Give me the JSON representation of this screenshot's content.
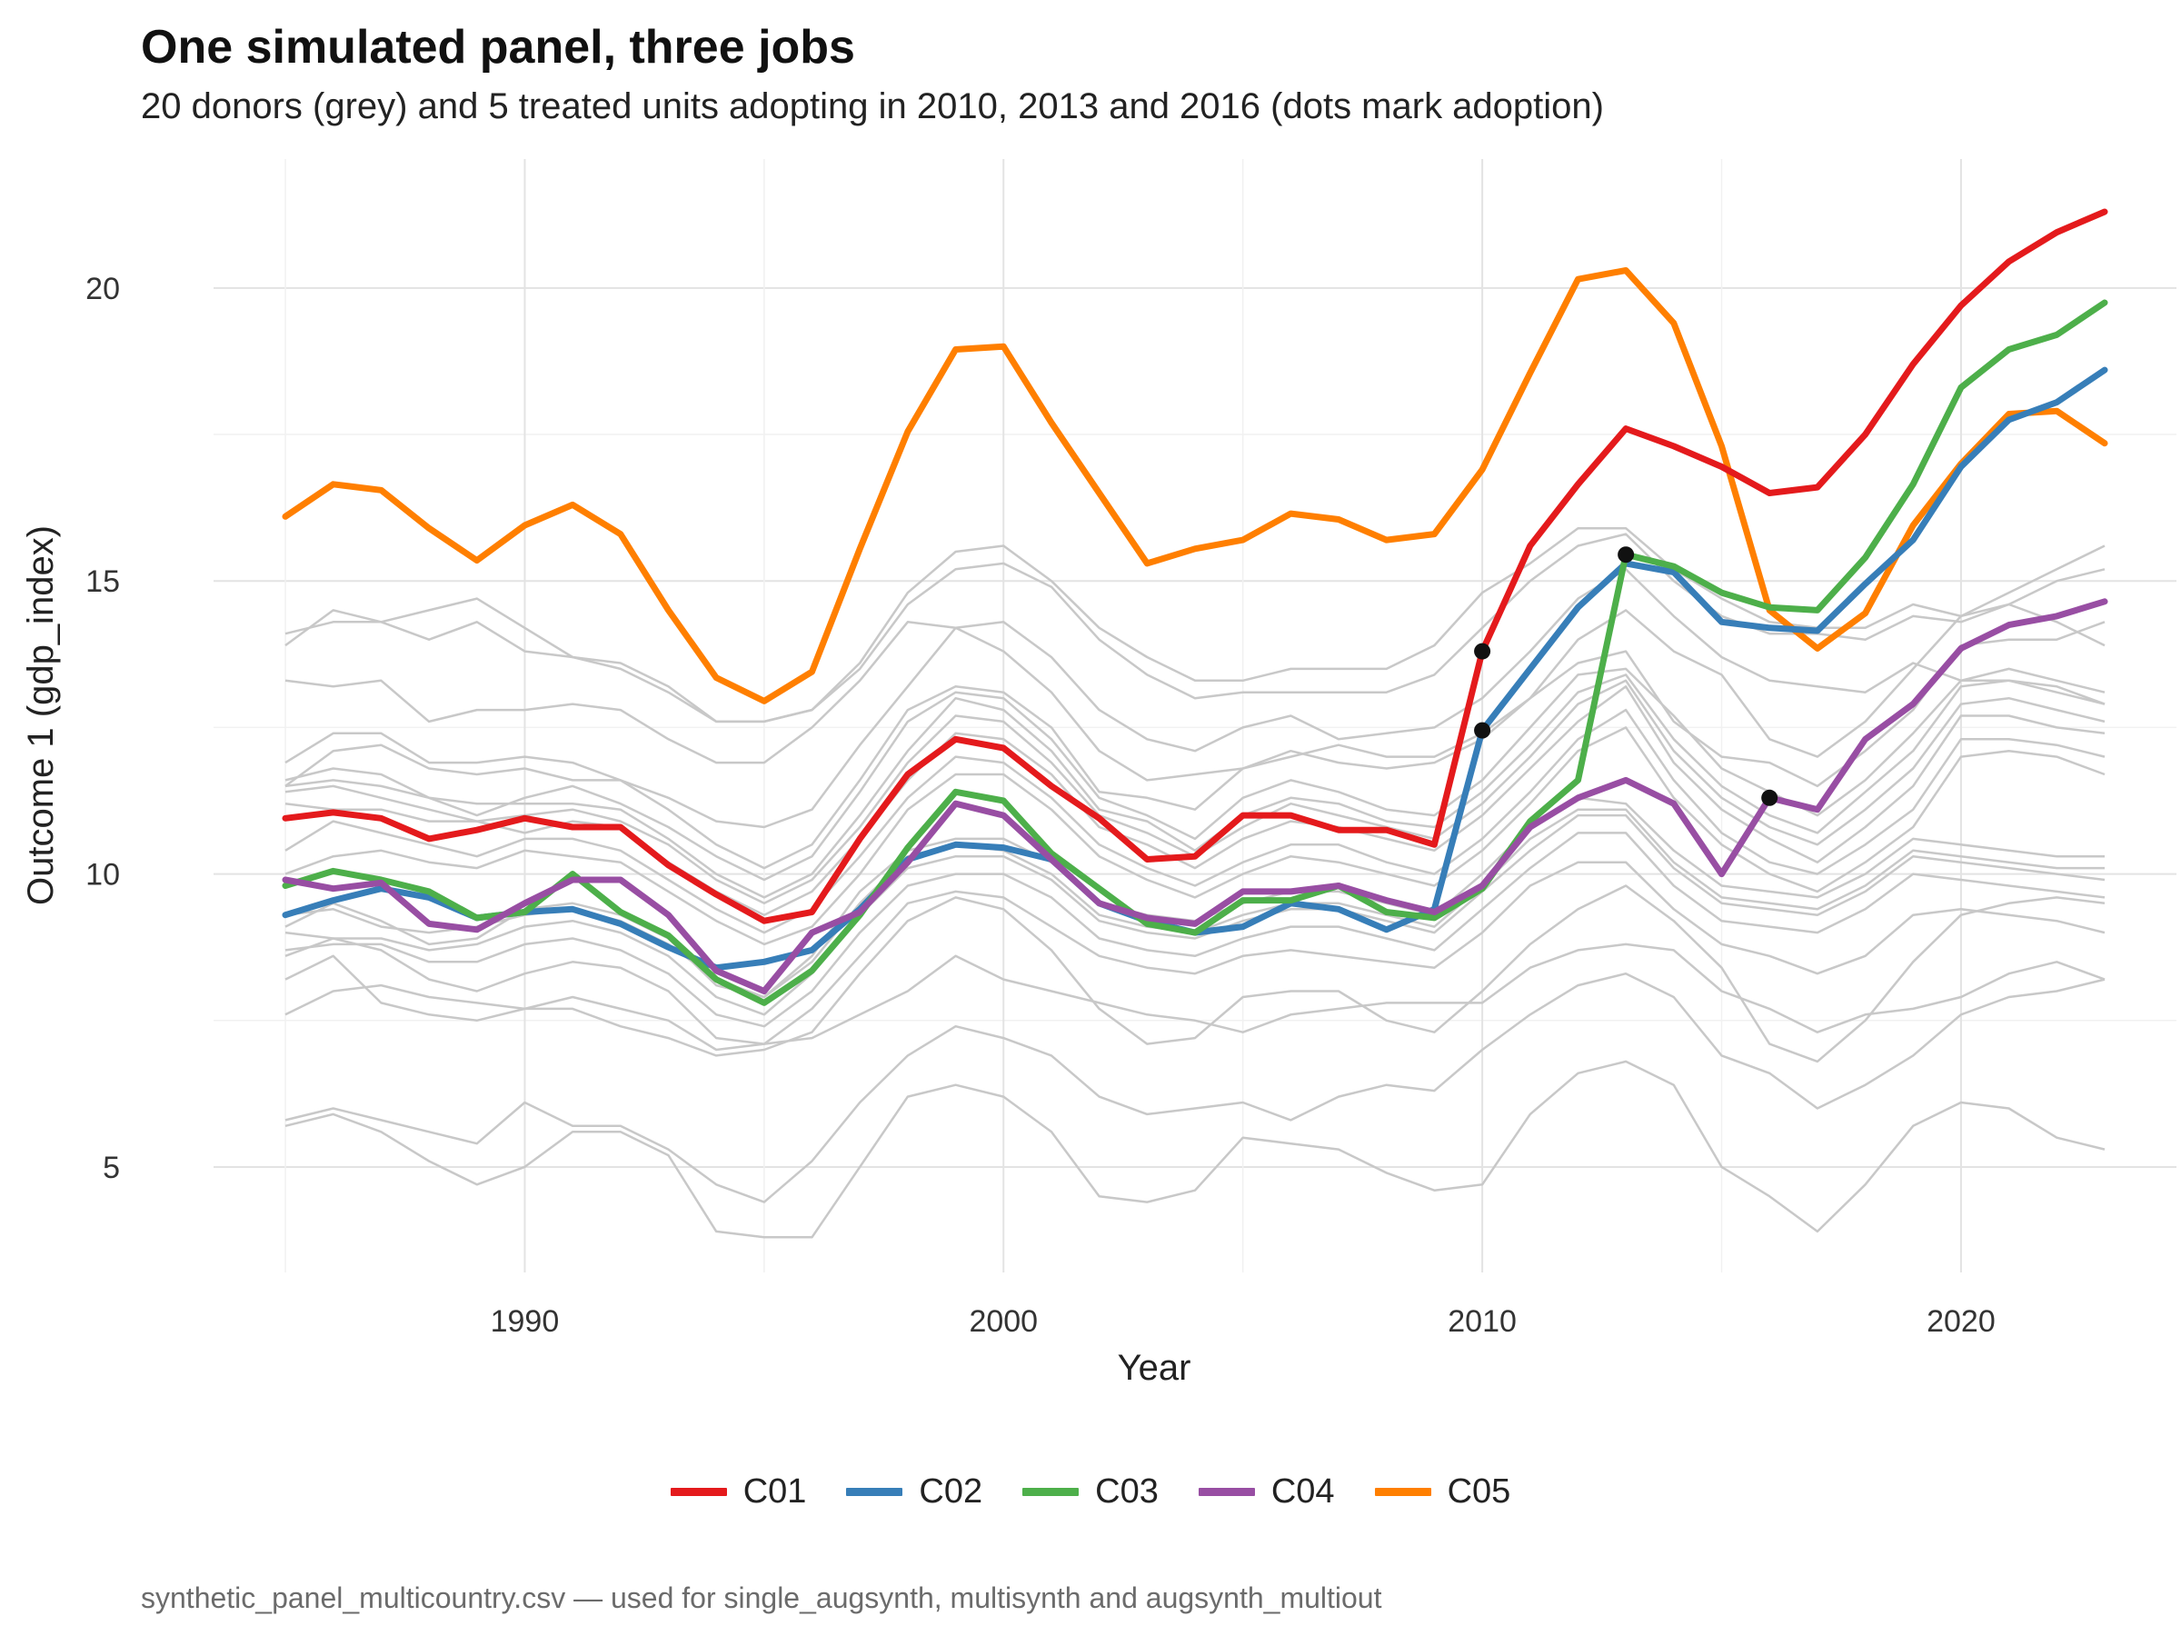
{
  "chart_data": {
    "type": "line",
    "title": "One simulated panel, three jobs",
    "subtitle": "20 donors (grey) and 5 treated units adopting in 2010, 2013 and 2016 (dots mark adoption)",
    "xlabel": "Year",
    "ylabel": "Outcome 1 (gdp_index)",
    "caption": "synthetic_panel_multicountry.csv — used for single_augsynth, multisynth and augsynth_multiout",
    "xlim": [
      1983.5,
      2024.5
    ],
    "ylim": [
      3.2,
      22.2
    ],
    "x_ticks": [
      1990,
      2000,
      2010,
      2020
    ],
    "y_ticks": [
      5,
      10,
      15,
      20
    ],
    "grid": true,
    "legend_position": "bottom",
    "x": [
      1985,
      1986,
      1987,
      1988,
      1989,
      1990,
      1991,
      1992,
      1993,
      1994,
      1995,
      1996,
      1997,
      1998,
      1999,
      2000,
      2001,
      2002,
      2003,
      2004,
      2005,
      2006,
      2007,
      2008,
      2009,
      2010,
      2011,
      2012,
      2013,
      2014,
      2015,
      2016,
      2017,
      2018,
      2019,
      2020,
      2021,
      2022,
      2023
    ],
    "donor_color": "#c8c8c8",
    "donors": [
      [
        14.1,
        14.3,
        14.3,
        14.5,
        14.7,
        14.2,
        13.7,
        13.5,
        13.1,
        12.6,
        12.6,
        12.8,
        13.6,
        14.8,
        15.5,
        15.6,
        15.0,
        14.2,
        13.7,
        13.3,
        13.3,
        13.5,
        13.5,
        13.5,
        13.9,
        14.8,
        15.3,
        15.9,
        15.9,
        15.2,
        14.7,
        14.3,
        14.2,
        14.2,
        14.6,
        14.4,
        14.8,
        15.2,
        15.6
      ],
      [
        13.9,
        14.5,
        14.3,
        14.0,
        14.3,
        13.8,
        13.7,
        13.6,
        13.2,
        12.6,
        12.6,
        12.8,
        13.5,
        14.6,
        15.2,
        15.3,
        14.9,
        14.0,
        13.4,
        13.0,
        13.1,
        13.1,
        13.1,
        13.1,
        13.4,
        14.2,
        15.0,
        15.6,
        15.8,
        15.0,
        14.4,
        14.1,
        14.1,
        14.0,
        14.4,
        14.3,
        14.6,
        15.0,
        15.2
      ],
      [
        13.3,
        13.2,
        13.3,
        12.6,
        12.8,
        12.8,
        12.9,
        12.8,
        12.3,
        11.9,
        11.9,
        12.5,
        13.3,
        14.3,
        14.2,
        14.3,
        13.7,
        12.8,
        12.3,
        12.1,
        12.5,
        12.7,
        12.3,
        12.4,
        12.5,
        13.0,
        13.8,
        14.7,
        15.2,
        14.4,
        13.7,
        13.3,
        13.2,
        13.1,
        13.6,
        13.3,
        13.3,
        13.1,
        12.9
      ],
      [
        11.9,
        12.4,
        12.4,
        11.9,
        11.9,
        12.0,
        11.9,
        11.6,
        11.3,
        10.9,
        10.8,
        11.1,
        12.2,
        13.2,
        14.2,
        13.8,
        13.1,
        12.1,
        11.6,
        11.7,
        11.8,
        12.0,
        12.2,
        12.0,
        12.0,
        12.4,
        13.0,
        14.0,
        14.5,
        13.8,
        13.4,
        12.3,
        12.0,
        12.6,
        13.5,
        14.4,
        14.6,
        14.3,
        13.9
      ],
      [
        11.5,
        12.1,
        12.2,
        11.8,
        11.7,
        11.8,
        11.6,
        11.6,
        11.1,
        10.5,
        10.1,
        10.5,
        11.6,
        12.8,
        13.2,
        13.1,
        12.5,
        11.4,
        11.3,
        11.1,
        11.8,
        12.1,
        11.9,
        11.8,
        11.9,
        12.3,
        13.0,
        13.6,
        13.8,
        12.6,
        12.0,
        11.9,
        11.5,
        12.1,
        12.8,
        13.9,
        14.0,
        14.0,
        14.3
      ],
      [
        11.6,
        11.8,
        11.7,
        11.3,
        11.0,
        11.3,
        11.5,
        11.2,
        10.8,
        10.3,
        9.9,
        10.3,
        11.4,
        12.6,
        13.1,
        13.0,
        12.3,
        11.3,
        11.0,
        10.6,
        11.3,
        11.6,
        11.4,
        11.1,
        11.0,
        11.6,
        12.5,
        13.4,
        13.5,
        12.7,
        11.8,
        11.4,
        11.0,
        11.6,
        12.4,
        13.3,
        13.5,
        13.3,
        13.1
      ],
      [
        11.5,
        11.6,
        11.5,
        11.3,
        11.2,
        11.2,
        11.2,
        11.1,
        10.6,
        10.0,
        9.6,
        10.0,
        11.0,
        12.1,
        13.0,
        12.8,
        12.1,
        11.1,
        10.9,
        10.4,
        11.0,
        11.3,
        11.2,
        10.9,
        10.8,
        11.4,
        12.2,
        13.1,
        13.4,
        12.3,
        11.5,
        11.0,
        10.7,
        11.4,
        12.1,
        13.2,
        13.3,
        13.2,
        12.9
      ],
      [
        11.4,
        11.5,
        11.3,
        11.1,
        10.9,
        11.0,
        11.1,
        10.9,
        10.5,
        9.9,
        9.5,
        9.9,
        10.8,
        11.9,
        12.7,
        12.6,
        11.9,
        11.0,
        10.7,
        10.3,
        10.8,
        11.2,
        11.0,
        10.8,
        10.6,
        11.2,
        12.0,
        12.9,
        13.3,
        12.1,
        11.3,
        10.8,
        10.5,
        11.1,
        11.8,
        12.9,
        13.0,
        12.8,
        12.6
      ],
      [
        11.2,
        11.1,
        11.1,
        10.9,
        10.9,
        10.7,
        10.9,
        10.8,
        10.2,
        9.7,
        9.3,
        9.7,
        10.6,
        11.6,
        12.4,
        12.3,
        11.7,
        10.8,
        10.5,
        10.1,
        10.6,
        10.9,
        10.8,
        10.6,
        10.4,
        11.0,
        11.8,
        12.6,
        13.2,
        11.9,
        11.1,
        10.6,
        10.2,
        10.8,
        11.5,
        12.7,
        12.7,
        12.5,
        12.4
      ],
      [
        10.4,
        10.9,
        10.7,
        10.5,
        10.3,
        10.6,
        10.6,
        10.4,
        9.9,
        9.4,
        9.0,
        9.4,
        10.3,
        11.3,
        12.0,
        11.9,
        11.3,
        10.5,
        10.1,
        9.8,
        10.2,
        10.5,
        10.5,
        10.2,
        10.0,
        10.6,
        11.4,
        12.3,
        12.8,
        11.6,
        10.7,
        10.2,
        10.0,
        10.5,
        11.1,
        12.3,
        12.3,
        12.2,
        12.0
      ],
      [
        10.0,
        10.3,
        10.4,
        10.2,
        10.1,
        10.4,
        10.3,
        10.2,
        9.7,
        9.2,
        8.8,
        9.1,
        10.0,
        11.1,
        11.7,
        11.7,
        11.1,
        10.3,
        9.9,
        9.6,
        10.0,
        10.3,
        10.2,
        10.0,
        9.8,
        10.4,
        11.2,
        12.1,
        12.5,
        11.3,
        10.5,
        10.0,
        9.7,
        10.2,
        10.8,
        12.0,
        12.1,
        12.0,
        11.7
      ],
      [
        9.1,
        9.5,
        9.2,
        8.8,
        8.9,
        9.4,
        9.5,
        9.3,
        8.9,
        8.1,
        7.9,
        8.6,
        9.7,
        10.4,
        10.6,
        10.6,
        10.2,
        9.5,
        9.3,
        9.2,
        9.5,
        9.7,
        9.7,
        9.5,
        9.3,
        10.0,
        10.8,
        11.3,
        11.2,
        10.4,
        9.8,
        9.7,
        9.6,
        10.0,
        10.6,
        10.5,
        10.4,
        10.3,
        10.3
      ],
      [
        9.0,
        8.9,
        8.9,
        8.7,
        8.8,
        9.1,
        9.2,
        9.0,
        8.6,
        7.9,
        7.6,
        8.3,
        9.3,
        10.1,
        10.3,
        10.3,
        9.9,
        9.2,
        9.0,
        8.9,
        9.2,
        9.4,
        9.4,
        9.2,
        9.0,
        9.7,
        10.4,
        11.0,
        11.0,
        10.1,
        9.5,
        9.4,
        9.3,
        9.7,
        10.3,
        10.2,
        10.1,
        10.0,
        9.9
      ],
      [
        8.7,
        8.8,
        8.8,
        8.5,
        8.5,
        8.8,
        8.9,
        8.7,
        8.3,
        7.6,
        7.4,
        8.0,
        9.0,
        9.8,
        10.0,
        10.0,
        9.6,
        8.9,
        8.7,
        8.6,
        8.9,
        9.1,
        9.1,
        8.9,
        8.7,
        9.4,
        10.1,
        10.7,
        10.7,
        9.8,
        9.2,
        9.1,
        9.0,
        9.4,
        10.0,
        9.9,
        9.8,
        9.7,
        9.6
      ],
      [
        8.6,
        8.9,
        8.7,
        8.2,
        8.0,
        8.3,
        8.5,
        8.4,
        8.0,
        7.2,
        7.1,
        7.7,
        8.6,
        9.5,
        9.7,
        9.6,
        9.1,
        8.6,
        8.4,
        8.3,
        8.6,
        8.7,
        8.6,
        8.5,
        8.4,
        9.0,
        9.8,
        10.2,
        10.2,
        9.4,
        8.8,
        8.6,
        8.3,
        8.6,
        9.3,
        9.4,
        9.3,
        9.2,
        9.0
      ],
      [
        8.2,
        8.6,
        7.8,
        7.6,
        7.5,
        7.7,
        7.9,
        7.7,
        7.5,
        7.0,
        7.1,
        7.2,
        7.6,
        8.0,
        8.6,
        8.2,
        8.0,
        7.8,
        7.6,
        7.5,
        7.3,
        7.6,
        7.7,
        7.8,
        7.8,
        7.8,
        8.4,
        8.7,
        8.8,
        8.7,
        8.0,
        7.7,
        7.3,
        7.6,
        7.7,
        7.9,
        8.3,
        8.5,
        8.2
      ],
      [
        7.6,
        8.0,
        8.1,
        7.9,
        7.8,
        7.7,
        7.7,
        7.4,
        7.2,
        6.9,
        7.0,
        7.3,
        8.3,
        9.2,
        9.6,
        9.4,
        8.7,
        7.7,
        7.1,
        7.2,
        7.9,
        8.0,
        8.0,
        7.5,
        7.3,
        8.0,
        8.8,
        9.4,
        9.8,
        9.2,
        8.4,
        7.1,
        6.8,
        7.5,
        8.5,
        9.3,
        9.5,
        9.6,
        9.5
      ],
      [
        5.8,
        6.0,
        5.8,
        5.6,
        5.4,
        6.1,
        5.7,
        5.7,
        5.3,
        4.7,
        4.4,
        5.1,
        6.1,
        6.9,
        7.4,
        7.2,
        6.9,
        6.2,
        5.9,
        6.0,
        6.1,
        5.8,
        6.2,
        6.4,
        6.3,
        7.0,
        7.6,
        8.1,
        8.3,
        7.9,
        6.9,
        6.6,
        6.0,
        6.4,
        6.9,
        7.6,
        7.9,
        8.0,
        8.2
      ],
      [
        5.7,
        5.9,
        5.6,
        5.1,
        4.7,
        5.0,
        5.6,
        5.6,
        5.2,
        3.9,
        3.8,
        3.8,
        5.0,
        6.2,
        6.4,
        6.2,
        5.6,
        4.5,
        4.4,
        4.6,
        5.5,
        5.4,
        5.3,
        4.9,
        4.6,
        4.7,
        5.9,
        6.6,
        6.8,
        6.4,
        5.0,
        4.5,
        3.9,
        4.7,
        5.7,
        6.1,
        6.0,
        5.5,
        5.3
      ],
      [
        9.3,
        9.4,
        9.1,
        9.0,
        9.1,
        9.3,
        9.4,
        9.2,
        8.8,
        8.2,
        7.9,
        8.5,
        9.5,
        10.3,
        10.5,
        10.4,
        10.0,
        9.3,
        9.1,
        9.0,
        9.3,
        9.5,
        9.5,
        9.3,
        9.1,
        9.8,
        10.6,
        11.1,
        11.1,
        10.2,
        9.6,
        9.5,
        9.4,
        9.8,
        10.4,
        10.3,
        10.2,
        10.1,
        10.1
      ]
    ],
    "series": [
      {
        "name": "C01",
        "color": "#e41a1c",
        "adoption_year": 2010,
        "adoption_value": 13.8,
        "values": [
          10.95,
          11.05,
          10.95,
          10.6,
          10.75,
          10.95,
          10.8,
          10.8,
          10.15,
          9.65,
          9.2,
          9.35,
          10.6,
          11.7,
          12.3,
          12.15,
          11.5,
          10.95,
          10.25,
          10.3,
          11.0,
          11.0,
          10.75,
          10.75,
          10.5,
          13.8,
          15.6,
          16.65,
          17.6,
          17.3,
          16.95,
          16.5,
          16.6,
          17.5,
          18.7,
          19.7,
          20.45,
          20.95,
          21.3
        ]
      },
      {
        "name": "C02",
        "color": "#377eb8",
        "adoption_year": 2010,
        "adoption_value": 12.45,
        "values": [
          9.3,
          9.55,
          9.75,
          9.6,
          9.25,
          9.35,
          9.4,
          9.15,
          8.75,
          8.4,
          8.5,
          8.7,
          9.4,
          10.25,
          10.5,
          10.45,
          10.25,
          9.5,
          9.2,
          9.0,
          9.1,
          9.5,
          9.4,
          9.05,
          9.4,
          12.45,
          13.5,
          14.55,
          15.3,
          15.15,
          14.3,
          14.2,
          14.15,
          14.95,
          15.7,
          16.95,
          17.75,
          18.05,
          18.6
        ]
      },
      {
        "name": "C03",
        "color": "#4daf4a",
        "adoption_year": 2013,
        "adoption_value": 15.45,
        "values": [
          9.8,
          10.05,
          9.9,
          9.7,
          9.25,
          9.35,
          10.0,
          9.35,
          8.95,
          8.2,
          7.8,
          8.35,
          9.3,
          10.45,
          11.4,
          11.25,
          10.35,
          9.75,
          9.15,
          9.0,
          9.55,
          9.55,
          9.8,
          9.35,
          9.25,
          9.75,
          10.9,
          11.6,
          15.45,
          15.25,
          14.8,
          14.55,
          14.5,
          15.4,
          16.65,
          18.3,
          18.95,
          19.2,
          19.75
        ]
      },
      {
        "name": "C04",
        "color": "#984ea3",
        "adoption_year": 2016,
        "adoption_value": 11.3,
        "values": [
          9.9,
          9.75,
          9.85,
          9.15,
          9.05,
          9.5,
          9.9,
          9.9,
          9.3,
          8.35,
          8.0,
          9.0,
          9.35,
          10.2,
          11.2,
          11.0,
          10.25,
          9.5,
          9.25,
          9.15,
          9.7,
          9.7,
          9.8,
          9.55,
          9.35,
          9.8,
          10.8,
          11.3,
          11.6,
          11.2,
          10.0,
          11.3,
          11.1,
          12.3,
          12.9,
          13.85,
          14.25,
          14.4,
          14.65
        ]
      },
      {
        "name": "C05",
        "color": "#ff7f00",
        "values": [
          16.1,
          16.65,
          16.55,
          15.9,
          15.35,
          15.95,
          16.3,
          15.8,
          14.5,
          13.35,
          12.95,
          13.45,
          15.55,
          17.55,
          18.95,
          19.0,
          17.7,
          16.5,
          15.3,
          15.55,
          15.7,
          16.15,
          16.05,
          15.7,
          15.8,
          16.9,
          18.55,
          20.15,
          20.3,
          19.4,
          17.3,
          14.5,
          13.85,
          14.45,
          15.95,
          17.0,
          17.85,
          17.9,
          17.35
        ]
      }
    ]
  }
}
